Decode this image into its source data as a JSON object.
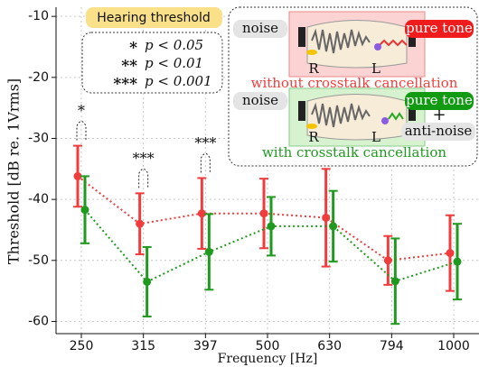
{
  "chart_data": {
    "type": "line",
    "xlabel": "Frequency [Hz]",
    "ylabel": "Threshold [dB re. 1Vrms]",
    "categories": [
      "250",
      "315",
      "397",
      "500",
      "630",
      "794",
      "1000"
    ],
    "ylim": [
      -62,
      -8.5
    ],
    "yticks": [
      -10,
      -20,
      -30,
      -40,
      -50,
      -60
    ],
    "grid": true,
    "series": [
      {
        "name": "without crosstalk cancellation",
        "color": "#f03c3c",
        "values": [
          -36.2,
          -44,
          -42.3,
          -42.3,
          -43,
          -50,
          -48.8
        ],
        "errors": [
          5,
          5,
          5.8,
          5.7,
          8,
          4,
          6.2
        ]
      },
      {
        "name": "with crosstalk cancellation",
        "color": "#1f9a1f",
        "values": [
          -41.7,
          -53.5,
          -48.6,
          -44.4,
          -44.4,
          -53.4,
          -50.2
        ],
        "errors": [
          5.5,
          5.7,
          6.2,
          4.8,
          5.8,
          7,
          6.2
        ]
      }
    ],
    "legend_title": "Hearing threshold",
    "significance": [
      {
        "stars": "*",
        "label": "p < 0.05"
      },
      {
        "stars": "**",
        "label": "p < 0.01"
      },
      {
        "stars": "***",
        "label": "p < 0.001"
      }
    ],
    "significance_markers": [
      {
        "category": "250",
        "label": "*"
      },
      {
        "category": "315",
        "label": "***"
      },
      {
        "category": "397",
        "label": "***"
      }
    ],
    "inset": {
      "noise": "noise",
      "pure_tone": "pure tone",
      "right": "R",
      "left": "L",
      "plus": "+",
      "anti_noise": "anti-noise"
    }
  }
}
